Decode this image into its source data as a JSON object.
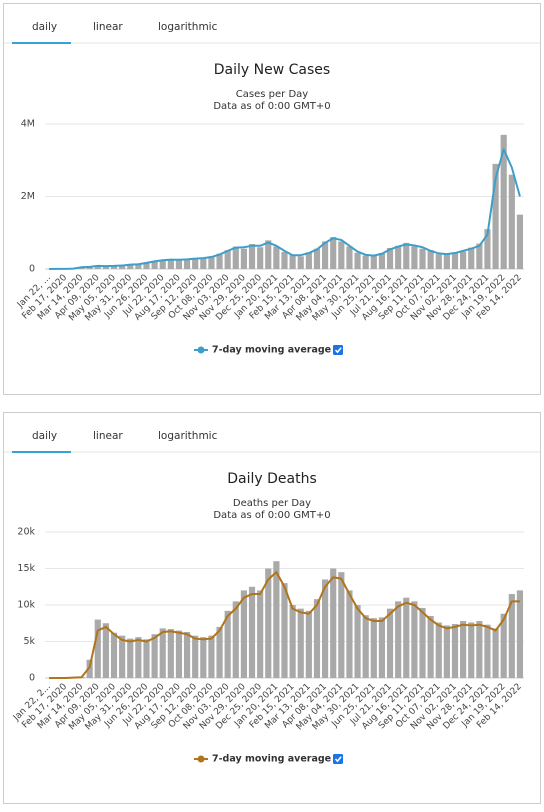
{
  "tab_bars": [
    [
      "daily",
      "linear",
      "logarithmic"
    ],
    [
      "daily",
      "linear",
      "logarithmic"
    ]
  ],
  "chart_data": [
    {
      "type": "bar",
      "title": "Daily New Cases",
      "subtitle": [
        "Cases per Day",
        "Data as of 0:00 GMT+0"
      ],
      "categories": [
        "Jan 22, ...",
        null,
        "Feb 17, 2020",
        null,
        "Mar 14, 2020",
        null,
        "Apr 09, 2020",
        null,
        "May 05, 2020",
        null,
        "May 31, 2020",
        null,
        "Jun 26, 2020",
        null,
        "Jul 22, 2020",
        null,
        "Aug 17, 2020",
        null,
        "Sep 12, 2020",
        null,
        "Oct 08, 2020",
        null,
        "Nov 03, 2020",
        null,
        "Nov 29, 2020",
        null,
        "Dec 25, 2020",
        null,
        "Jan 20, 2021",
        null,
        "Feb 15, 2021",
        null,
        "Mar 13, 2021",
        null,
        "Apr 08, 2021",
        null,
        "May 04, 2021",
        null,
        "May 30, 2021",
        null,
        "Jun 25, 2021",
        null,
        "Jul 21, 2021",
        null,
        "Aug 16, 2021",
        null,
        "Sep 11, 2021",
        null,
        "Oct 07, 2021",
        null,
        "Nov 02, 2021",
        null,
        "Nov 28, 2021",
        null,
        "Dec 24, 2021",
        null,
        "Jan 19, 2022",
        null,
        "Feb 14, 2022"
      ],
      "series": [
        {
          "type": "bar",
          "color": "#a9a9a9",
          "values": [
            0,
            2500,
            1500,
            12000,
            55000,
            70000,
            90000,
            75000,
            92000,
            100000,
            115000,
            140000,
            180000,
            220000,
            250000,
            250000,
            265000,
            270000,
            280000,
            310000,
            350000,
            420000,
            520000,
            620000,
            560000,
            690000,
            600000,
            790000,
            620000,
            470000,
            400000,
            350000,
            460000,
            560000,
            760000,
            880000,
            760000,
            620000,
            450000,
            370000,
            390000,
            440000,
            580000,
            640000,
            720000,
            630000,
            560000,
            520000,
            410000,
            430000,
            460000,
            480000,
            590000,
            700000,
            1100000,
            2900000,
            3700000,
            2600000,
            1500000
          ]
        },
        {
          "type": "line",
          "name": "7-day moving average",
          "color": "#3d9fc9",
          "values": [
            0,
            2000,
            2000,
            10000,
            50000,
            60000,
            85000,
            80000,
            85000,
            95000,
            120000,
            130000,
            170000,
            210000,
            240000,
            260000,
            255000,
            265000,
            285000,
            300000,
            330000,
            400000,
            500000,
            590000,
            600000,
            640000,
            640000,
            730000,
            640000,
            500000,
            380000,
            380000,
            440000,
            540000,
            720000,
            850000,
            800000,
            640000,
            480000,
            390000,
            370000,
            420000,
            540000,
            620000,
            680000,
            650000,
            600000,
            500000,
            430000,
            410000,
            440000,
            500000,
            560000,
            640000,
            950000,
            2500000,
            3300000,
            2800000,
            2000000
          ]
        }
      ],
      "ylim": [
        0,
        4000000
      ],
      "yticks": [
        0,
        {
          "value": 2000000,
          "label": "2M"
        },
        {
          "value": 4000000,
          "label": "4M"
        }
      ],
      "grid": true
    },
    {
      "type": "bar",
      "title": "Daily Deaths",
      "subtitle": [
        "Deaths per Day",
        "Data as of 0:00 GMT+0"
      ],
      "categories": [
        "Jan 22, 2...",
        null,
        "Feb 17, 2020",
        null,
        "Mar 14, 2020",
        null,
        "Apr 09, 2020",
        null,
        "May 05, 2020",
        null,
        "May 31, 2020",
        null,
        "Jun 26, 2020",
        null,
        "Jul 22, 2020",
        null,
        "Aug 17, 2020",
        null,
        "Sep 12, 2020",
        null,
        "Oct 08, 2020",
        null,
        "Nov 03, 2020",
        null,
        "Nov 29, 2020",
        null,
        "Dec 25, 2020",
        null,
        "Jan 20, 2021",
        null,
        "Feb 15, 2021",
        null,
        "Mar 13, 2021",
        null,
        "Apr 08, 2021",
        null,
        "May 04, 2021",
        null,
        "May 30, 2021",
        null,
        "Jun 25, 2021",
        null,
        "Jul 21, 2021",
        null,
        "Aug 16, 2021",
        null,
        "Sep 11, 2021",
        null,
        "Oct 07, 2021",
        null,
        "Nov 02, 2021",
        null,
        "Nov 28, 2021",
        null,
        "Dec 24, 2021",
        null,
        "Jan 19, 2022",
        null,
        "Feb 14, 2022"
      ],
      "series": [
        {
          "type": "bar",
          "color": "#a9a9a9",
          "values": [
            0,
            0,
            0,
            80,
            150,
            2500,
            8000,
            7500,
            6200,
            5800,
            5400,
            5600,
            5300,
            6000,
            6800,
            6700,
            6500,
            6300,
            5800,
            5600,
            5800,
            7000,
            9200,
            10500,
            12000,
            12500,
            12000,
            15000,
            16000,
            13000,
            10000,
            9500,
            9200,
            10800,
            13500,
            15000,
            14500,
            12000,
            10000,
            8600,
            8200,
            8300,
            9500,
            10500,
            11000,
            10500,
            9600,
            8500,
            7600,
            7200,
            7400,
            7800,
            7600,
            7800,
            7300,
            6800,
            8800,
            11500,
            12000
          ]
        },
        {
          "type": "line",
          "name": "7-day moving average",
          "color": "#b0741a",
          "values": [
            0,
            0,
            0,
            50,
            100,
            1500,
            6500,
            7000,
            6000,
            5200,
            5000,
            5200,
            5000,
            5500,
            6300,
            6400,
            6200,
            6000,
            5400,
            5300,
            5400,
            6500,
            8500,
            9500,
            11000,
            11500,
            11500,
            13500,
            14500,
            12500,
            9500,
            9000,
            8800,
            10000,
            12500,
            13800,
            13600,
            11500,
            9500,
            8200,
            7800,
            7800,
            8800,
            9800,
            10300,
            10000,
            9000,
            8000,
            7200,
            6800,
            7000,
            7300,
            7200,
            7300,
            7000,
            6500,
            8000,
            10500,
            10500
          ]
        }
      ],
      "ylim": [
        0,
        20000
      ],
      "yticks": [
        0,
        {
          "value": 5000,
          "label": "5k"
        },
        {
          "value": 10000,
          "label": "10k"
        },
        {
          "value": 15000,
          "label": "15k"
        },
        {
          "value": 20000,
          "label": "20k"
        }
      ],
      "grid": true
    }
  ]
}
